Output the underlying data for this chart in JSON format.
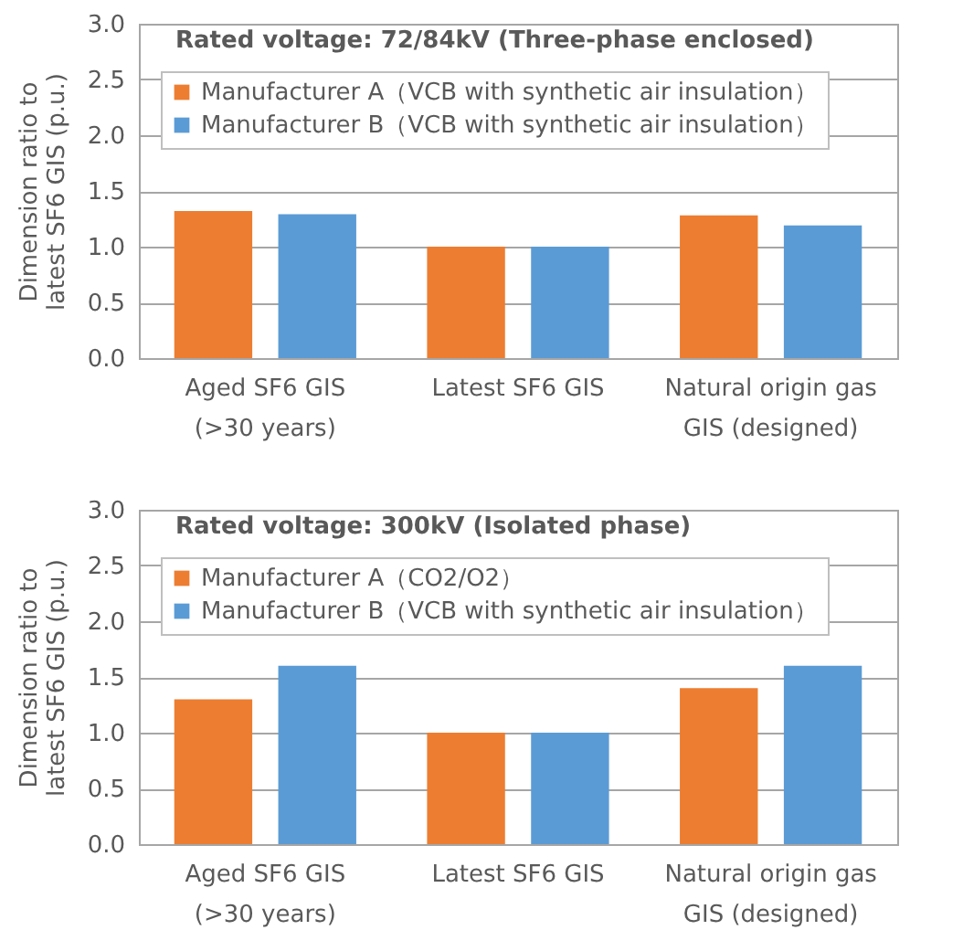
{
  "chart_data": [
    {
      "type": "bar",
      "title": "Rated voltage: 72/84kV (Three-phase enclosed)",
      "ylabel": "Dimension ratio to\nlatest SF6 GIS (p.u.)",
      "categories": [
        "Aged SF6 GIS\n(>30 years)",
        "Latest SF6 GIS",
        "Natural origin gas\nGIS (designed)"
      ],
      "series": [
        {
          "name": "Manufacturer A（VCB with synthetic air insulation）",
          "color": "#ed7d31",
          "values": [
            1.32,
            1.0,
            1.28
          ]
        },
        {
          "name": "Manufacturer B（VCB with synthetic air insulation）",
          "color": "#5b9bd5",
          "values": [
            1.29,
            1.0,
            1.19
          ]
        }
      ],
      "ylim": [
        0,
        3
      ],
      "yticks": [
        {
          "value": 0,
          "label": "0.0"
        },
        {
          "value": 0.5,
          "label": "0.5"
        },
        {
          "value": 1,
          "label": "1.0"
        },
        {
          "value": 1.5,
          "label": "1.5"
        },
        {
          "value": 2,
          "label": "2.0"
        },
        {
          "value": 2.5,
          "label": "2.5"
        },
        {
          "value": 3,
          "label": "3.0"
        }
      ],
      "grid": "y",
      "legend": "top"
    },
    {
      "type": "bar",
      "title": "Rated voltage: 300kV (Isolated phase)",
      "ylabel": "Dimension ratio to\nlatest SF6 GIS (p.u.)",
      "categories": [
        "Aged SF6 GIS\n(>30 years)",
        "Latest SF6 GIS",
        "Natural origin gas\nGIS (designed)"
      ],
      "series": [
        {
          "name": "Manufacturer A（CO2/O2）",
          "color": "#ed7d31",
          "values": [
            1.3,
            1.0,
            1.4
          ]
        },
        {
          "name": "Manufacturer B（VCB with synthetic air insulation）",
          "color": "#5b9bd5",
          "values": [
            1.6,
            1.0,
            1.6
          ]
        }
      ],
      "ylim": [
        0,
        3
      ],
      "yticks": [
        {
          "value": 0,
          "label": "0.0"
        },
        {
          "value": 0.5,
          "label": "0.5"
        },
        {
          "value": 1,
          "label": "1.0"
        },
        {
          "value": 1.5,
          "label": "1.5"
        },
        {
          "value": 2,
          "label": "2.0"
        },
        {
          "value": 2.5,
          "label": "2.5"
        },
        {
          "value": 3,
          "label": "3.0"
        }
      ],
      "grid": "y",
      "legend": "top"
    }
  ]
}
